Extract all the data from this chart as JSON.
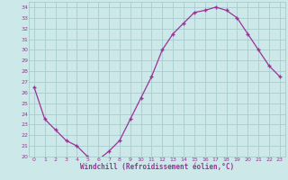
{
  "hours": [
    0,
    1,
    2,
    3,
    4,
    5,
    6,
    7,
    8,
    9,
    10,
    11,
    12,
    13,
    14,
    15,
    16,
    17,
    18,
    19,
    20,
    21,
    22,
    23
  ],
  "windchill": [
    26.5,
    23.5,
    22.5,
    21.5,
    21.0,
    20.0,
    19.7,
    20.5,
    21.5,
    23.5,
    25.5,
    27.5,
    30.0,
    31.5,
    32.5,
    33.5,
    33.7,
    34.0,
    33.7,
    33.0,
    31.5,
    30.0,
    28.5,
    27.5
  ],
  "line_color": "#993399",
  "marker": "+",
  "bg_color": "#cce8e8",
  "grid_color": "#aacccc",
  "xlabel": "Windchill (Refroidissement éolien,°C)",
  "xlabel_color": "#993399",
  "tick_color": "#993399",
  "ylim": [
    20,
    34.5
  ],
  "yticks": [
    20,
    21,
    22,
    23,
    24,
    25,
    26,
    27,
    28,
    29,
    30,
    31,
    32,
    33,
    34
  ],
  "xlim": [
    -0.5,
    23.5
  ],
  "xticks": [
    0,
    1,
    2,
    3,
    4,
    5,
    6,
    7,
    8,
    9,
    10,
    11,
    12,
    13,
    14,
    15,
    16,
    17,
    18,
    19,
    20,
    21,
    22,
    23
  ]
}
